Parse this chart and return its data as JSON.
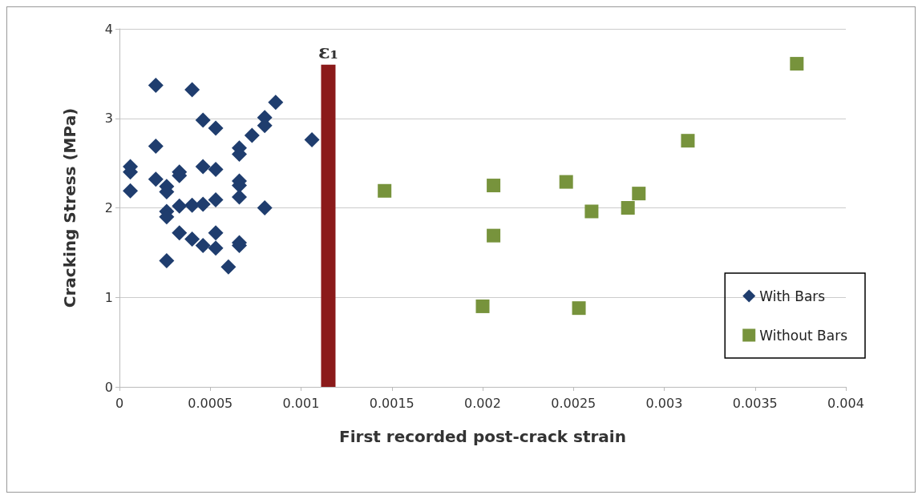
{
  "chart_data": {
    "type": "scatter",
    "xlabel": "First recorded post-crack strain",
    "ylabel": "Cracking Stress (MPa)",
    "xlim": [
      0,
      0.004
    ],
    "xticks": [
      0,
      0.0005,
      0.001,
      0.0015,
      0.002,
      0.0025,
      0.003,
      0.0035,
      0.004
    ],
    "ylim": [
      0,
      4
    ],
    "yticks": [
      0,
      1,
      2,
      3,
      4
    ],
    "grid": "y",
    "legend": "right",
    "annotations": [
      {
        "text": "ε₁",
        "x": 0.00115,
        "y": 3.6
      }
    ],
    "series": [
      {
        "name": "With Bars",
        "marker": "diamond",
        "color": "#1f3d6e",
        "x": [
          6e-05,
          6e-05,
          6e-05,
          0.0002,
          0.0002,
          0.0002,
          0.00026,
          0.00026,
          0.00026,
          0.00026,
          0.00026,
          0.00033,
          0.00033,
          0.00033,
          0.00033,
          0.0004,
          0.0004,
          0.0004,
          0.00046,
          0.00046,
          0.00046,
          0.00046,
          0.00053,
          0.00053,
          0.00053,
          0.00053,
          0.00053,
          0.0006,
          0.00066,
          0.00066,
          0.00066,
          0.00066,
          0.00066,
          0.00066,
          0.00066,
          0.00073,
          0.0008,
          0.0008,
          0.0008,
          0.00086,
          0.00106
        ],
        "values": [
          2.46,
          2.4,
          2.19,
          3.37,
          2.69,
          2.32,
          2.24,
          2.18,
          1.96,
          1.9,
          1.41,
          2.4,
          2.36,
          2.02,
          1.72,
          3.32,
          2.03,
          1.65,
          2.98,
          2.46,
          2.04,
          1.58,
          2.89,
          2.43,
          2.09,
          1.72,
          1.55,
          1.34,
          2.67,
          2.6,
          2.3,
          2.25,
          2.12,
          1.61,
          1.58,
          2.81,
          3.01,
          2.92,
          2.0,
          3.18,
          2.76
        ]
      },
      {
        "name": "Without Bars",
        "marker": "square",
        "color": "#77933c",
        "x": [
          0.00146,
          0.00206,
          0.00206,
          0.002,
          0.00246,
          0.0026,
          0.00253,
          0.0028,
          0.00286,
          0.00313,
          0.00373
        ],
        "values": [
          2.19,
          2.25,
          1.69,
          0.9,
          2.29,
          1.96,
          0.88,
          2.0,
          2.16,
          2.75,
          3.61
        ]
      },
      {
        "type": "bar",
        "color": "#8b1a1a",
        "x": [
          0.00115
        ],
        "values": [
          3.6
        ]
      }
    ]
  }
}
